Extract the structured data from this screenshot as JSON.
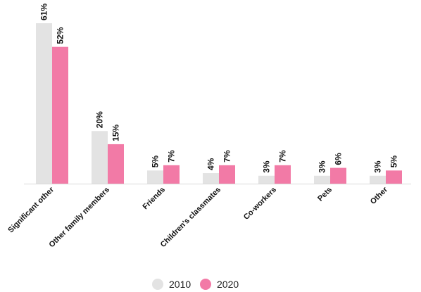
{
  "chart_data": {
    "type": "bar",
    "categories": [
      "Significant other",
      "Other family members",
      "Friends",
      "Children's classmates",
      "Co-workers",
      "Pets",
      "Other"
    ],
    "series": [
      {
        "name": "2010",
        "values": [
          61,
          20,
          5,
          4,
          3,
          3,
          3
        ],
        "color": "#e3e3e3"
      },
      {
        "name": "2020",
        "values": [
          52,
          15,
          7,
          7,
          7,
          6,
          5
        ],
        "color": "#f27aa6"
      }
    ],
    "value_suffix": "%",
    "title": "",
    "xlabel": "",
    "ylabel": "",
    "ylim": [
      0,
      61
    ],
    "grid": false,
    "legend": "bottom-center"
  }
}
